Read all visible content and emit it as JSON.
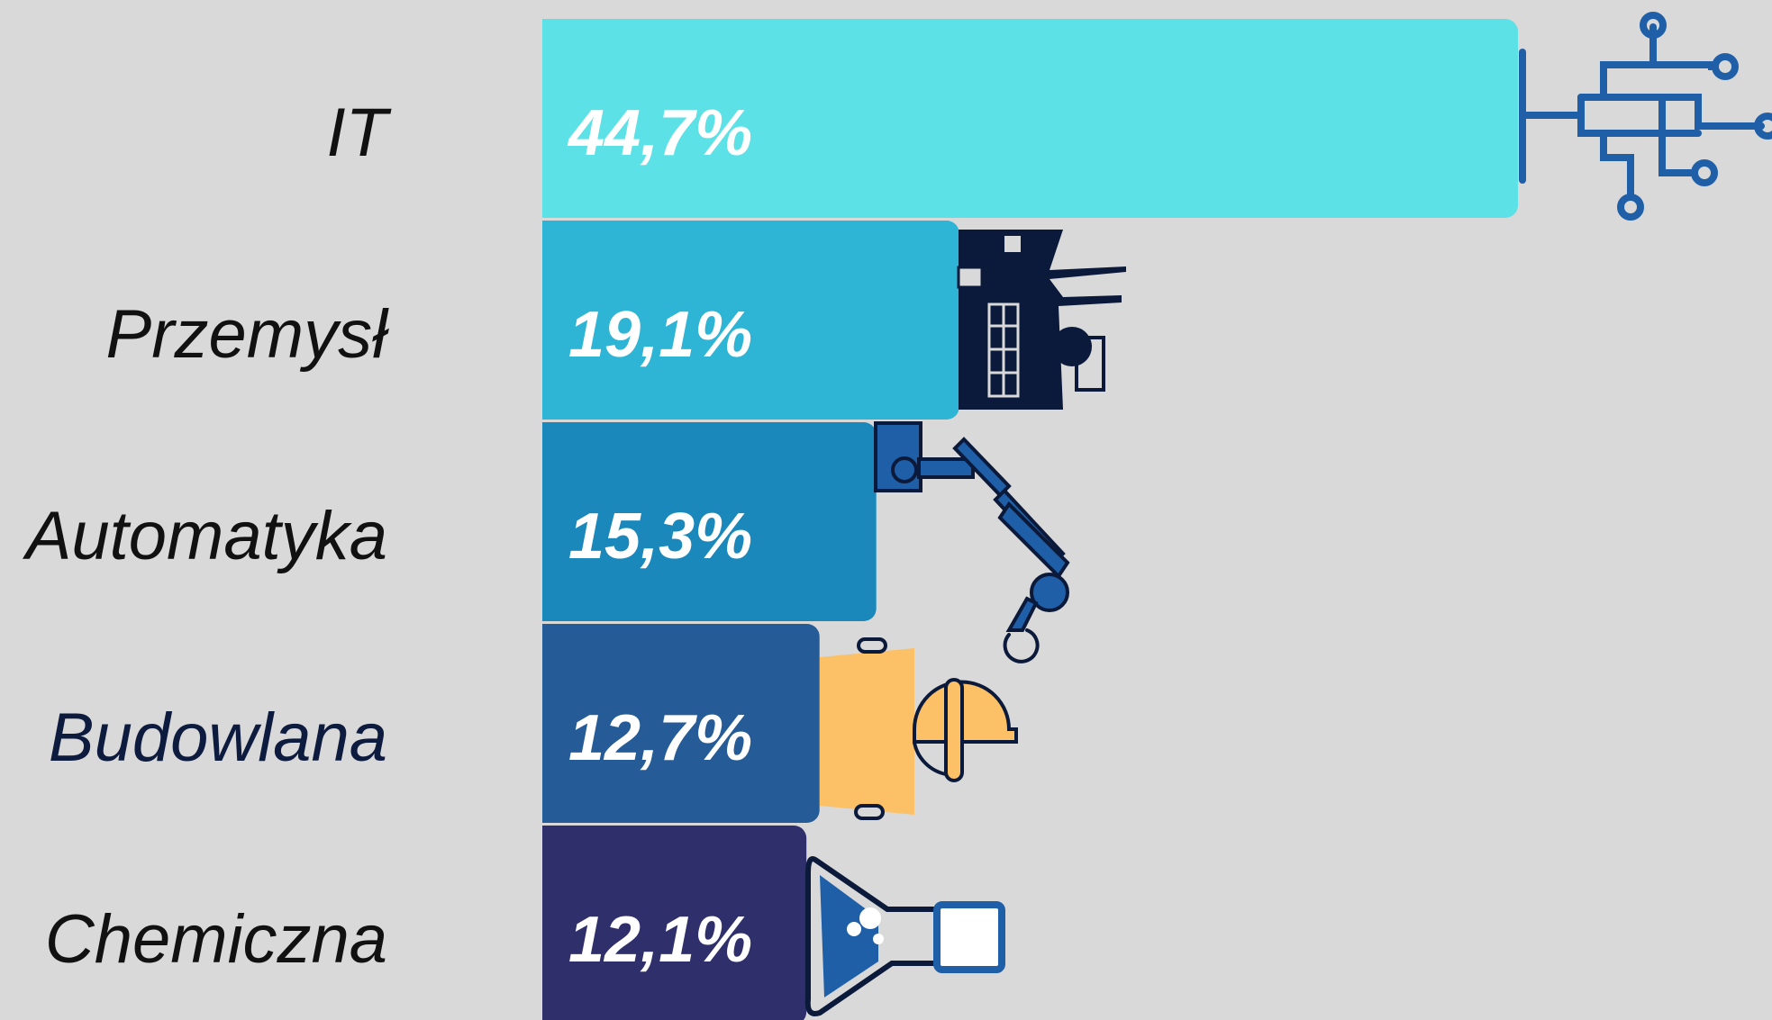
{
  "chart_data": {
    "type": "bar",
    "orientation": "horizontal",
    "categories": [
      "IT",
      "Przemysł",
      "Automatyka",
      "Budowlana",
      "Chemiczna"
    ],
    "values": [
      44.7,
      19.1,
      15.3,
      12.7,
      12.1
    ],
    "value_labels": [
      "44,7%",
      "19,1%",
      "15,3%",
      "12,7%",
      "12,1%"
    ],
    "colors": [
      "#5ce1e6",
      "#2eb4d4",
      "#1a88bb",
      "#255b96",
      "#2f2f6b"
    ],
    "label_colors": [
      "#111111",
      "#111111",
      "#111111",
      "#0d1b3e",
      "#111111"
    ]
  }
}
